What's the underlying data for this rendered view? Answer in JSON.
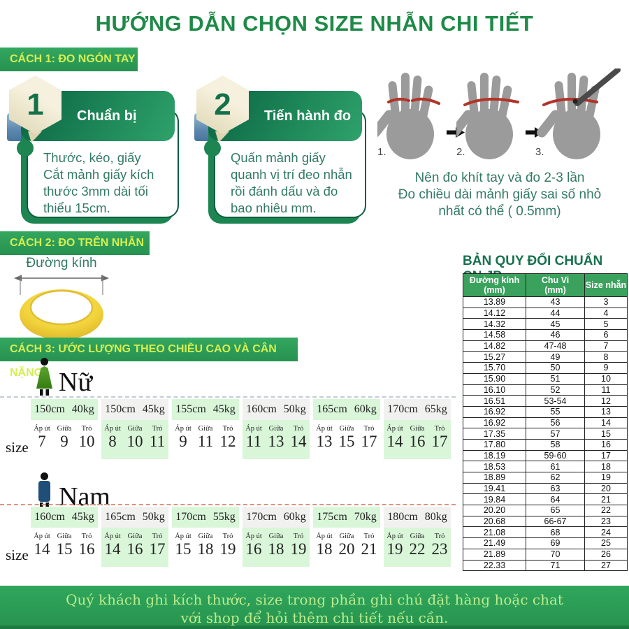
{
  "title": "HƯỚNG DẪN CHỌN SIZE NHẪN CHI TIẾT",
  "method1": {
    "badge": "CÁCH 1: ĐO NGÓN TAY",
    "steps": [
      {
        "number": "1",
        "title": "Chuẩn bị",
        "body": "Thước, kéo, giấy\nCắt mảnh giấy kích thước 3mm dài tối thiểu 15cm."
      },
      {
        "number": "2",
        "title": "Tiến hành đo",
        "body": "Quấn mảnh giấy quanh vị trí đeo nhẫn rồi đánh dấu và đo bao nhiêu mm."
      }
    ],
    "hand_labels": [
      "1.",
      "2.",
      "3."
    ],
    "note": "Nên đo khít tay và đo 2-3 lần\nĐo chiều dài mảnh giấy sai số nhỏ\nnhất có thể ( 0.5mm)"
  },
  "method2": {
    "badge": "CÁCH 2: ĐO TRÊN NHẪN",
    "ring_label": "Đường kính"
  },
  "conversion_table": {
    "title": "BẢN QUY ĐỔI CHUẨN CN,JP",
    "headers": [
      "Đường kính\n(mm)",
      "Chu Vi\n(mm)",
      "Size nhẫn"
    ],
    "rows": [
      [
        "13.89",
        "43",
        "3"
      ],
      [
        "14.12",
        "44",
        "4"
      ],
      [
        "14.32",
        "45",
        "5"
      ],
      [
        "14.58",
        "46",
        "6"
      ],
      [
        "14.82",
        "47-48",
        "7"
      ],
      [
        "15.27",
        "49",
        "8"
      ],
      [
        "15.70",
        "50",
        "9"
      ],
      [
        "15.90",
        "51",
        "10"
      ],
      [
        "16.10",
        "52",
        "11"
      ],
      [
        "16.51",
        "53-54",
        "12"
      ],
      [
        "16.92",
        "55",
        "13"
      ],
      [
        "16.92",
        "56",
        "14"
      ],
      [
        "17.35",
        "57",
        "15"
      ],
      [
        "17.80",
        "58",
        "16"
      ],
      [
        "18.19",
        "59-60",
        "17"
      ],
      [
        "18.53",
        "61",
        "18"
      ],
      [
        "18.89",
        "62",
        "19"
      ],
      [
        "19.41",
        "63",
        "20"
      ],
      [
        "19.84",
        "64",
        "21"
      ],
      [
        "20.20",
        "65",
        "22"
      ],
      [
        "20.68",
        "66-67",
        "23"
      ],
      [
        "21.08",
        "68",
        "24"
      ],
      [
        "21.49",
        "69",
        "25"
      ],
      [
        "21.89",
        "70",
        "26"
      ],
      [
        "22.33",
        "71",
        "27"
      ]
    ]
  },
  "method3": {
    "badge": "CÁCH 3: ƯỚC LƯỢNG THEO CHIỀU CAO VÀ CÂN NẶNG",
    "size_label": "size",
    "finger_labels": [
      "Áp út",
      "Giữa",
      "Trỏ"
    ],
    "female": {
      "label": "Nữ",
      "groups": [
        {
          "header": "150cm 40kg",
          "sizes": [
            "7",
            "9",
            "10"
          ]
        },
        {
          "header": "150cm 45kg",
          "sizes": [
            "8",
            "10",
            "11"
          ]
        },
        {
          "header": "155cm 45kg",
          "sizes": [
            "9",
            "11",
            "12"
          ]
        },
        {
          "header": "160cm 50kg",
          "sizes": [
            "11",
            "13",
            "14"
          ]
        },
        {
          "header": "165cm 60kg",
          "sizes": [
            "13",
            "15",
            "17"
          ]
        },
        {
          "header": "170cm 65kg",
          "sizes": [
            "14",
            "16",
            "17"
          ]
        }
      ]
    },
    "male": {
      "label": "Nam",
      "groups": [
        {
          "header": "160cm 45kg",
          "sizes": [
            "14",
            "15",
            "16"
          ]
        },
        {
          "header": "165cm 50kg",
          "sizes": [
            "14",
            "16",
            "17"
          ]
        },
        {
          "header": "170cm 55kg",
          "sizes": [
            "15",
            "18",
            "19"
          ]
        },
        {
          "header": "170cm 60kg",
          "sizes": [
            "16",
            "18",
            "19"
          ]
        },
        {
          "header": "175cm 70kg",
          "sizes": [
            "18",
            "20",
            "21"
          ]
        },
        {
          "header": "180cm 80kg",
          "sizes": [
            "19",
            "22",
            "23"
          ]
        }
      ]
    }
  },
  "footer": "Quý khách ghi kích thước, size trong phần ghi chú đặt hàng hoặc chat\nvới shop để hỏi thêm chi tiết nếu cần."
}
